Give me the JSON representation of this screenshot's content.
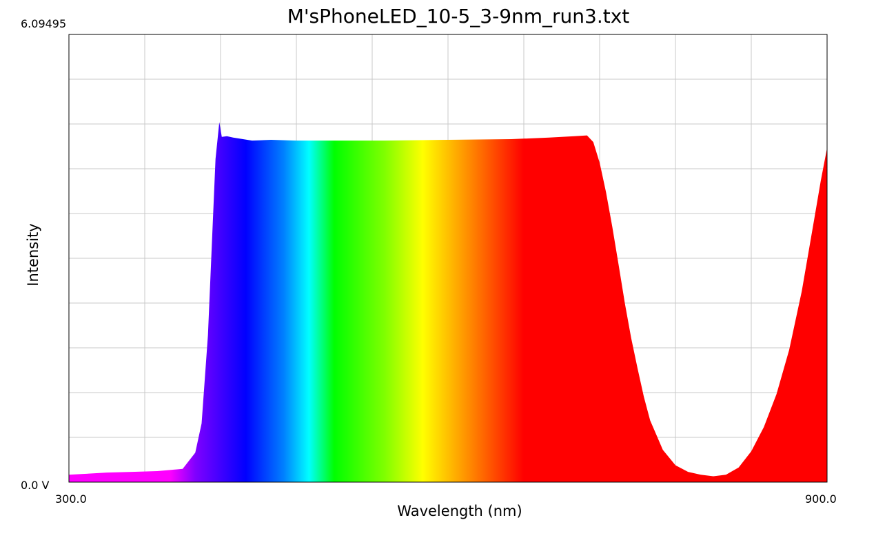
{
  "chart_data": {
    "type": "area",
    "title": "M'sPhoneLED_10-5_3-9nm_run3.txt",
    "xlabel": "Wavelength (nm)",
    "ylabel": "Intensity",
    "xlim": [
      300.0,
      900.0
    ],
    "ylim": [
      0.0,
      6.09495
    ],
    "x_tick_labels": {
      "min": "300.0",
      "max": "900.0"
    },
    "y_tick_labels": {
      "min": "0.0 V",
      "max": "6.09495"
    },
    "grid": true,
    "fill": "visible-spectrum gradient",
    "series": [
      {
        "x": [
          300,
          310,
          330,
          350,
          370,
          390,
          400,
          405,
          410,
          413,
          416,
          419,
          421,
          425,
          430,
          445,
          460,
          480,
          500,
          550,
          600,
          650,
          680,
          700,
          710,
          715,
          720,
          725,
          730,
          735,
          740,
          745,
          750,
          755,
          760,
          770,
          780,
          790,
          800,
          810,
          820,
          830,
          840,
          850,
          860,
          870,
          880,
          890,
          895,
          900
        ],
        "y": [
          0.1,
          0.11,
          0.13,
          0.14,
          0.15,
          0.18,
          0.4,
          0.8,
          2.0,
          3.2,
          4.4,
          4.9,
          4.7,
          4.71,
          4.69,
          4.65,
          4.66,
          4.65,
          4.65,
          4.65,
          4.66,
          4.67,
          4.69,
          4.71,
          4.72,
          4.63,
          4.35,
          3.95,
          3.48,
          2.96,
          2.43,
          1.96,
          1.55,
          1.16,
          0.84,
          0.44,
          0.23,
          0.14,
          0.1,
          0.08,
          0.1,
          0.2,
          0.42,
          0.75,
          1.2,
          1.8,
          2.6,
          3.6,
          4.1,
          4.55
        ]
      }
    ]
  }
}
